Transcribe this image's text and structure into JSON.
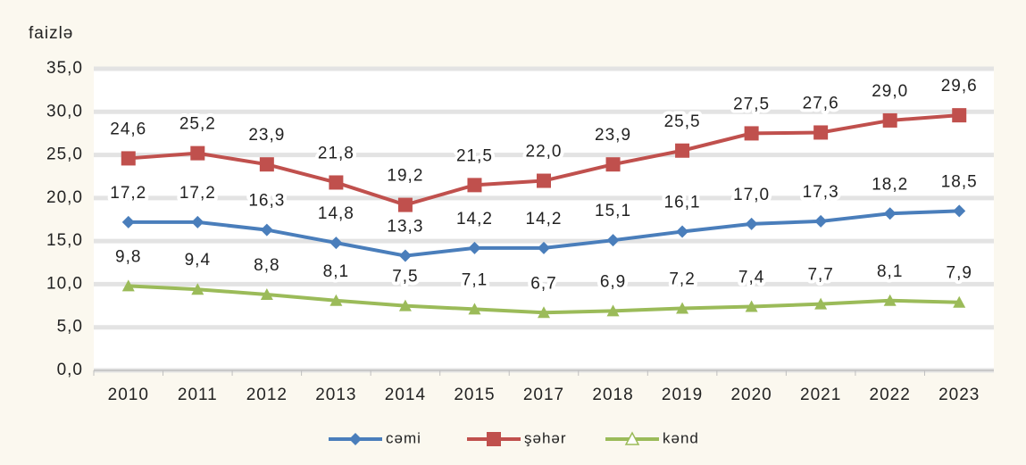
{
  "chart_data": {
    "type": "line",
    "ylabel": "faizlə",
    "categories": [
      "2010",
      "2011",
      "2012",
      "2013",
      "2014",
      "2015",
      "2017",
      "2018",
      "2019",
      "2020",
      "2021",
      "2022",
      "2023"
    ],
    "series": [
      {
        "name": "cəmi",
        "color": "#4a7ebb",
        "marker": "diamond",
        "values": [
          17.2,
          17.2,
          16.3,
          14.8,
          13.3,
          14.2,
          14.2,
          15.1,
          16.1,
          17.0,
          17.3,
          18.2,
          18.5
        ],
        "value_labels": [
          "17,2",
          "17,2",
          "16,3",
          "14,8",
          "13,3",
          "14,2",
          "14,2",
          "15,1",
          "16,1",
          "17,0",
          "17,3",
          "18,2",
          "18,5"
        ]
      },
      {
        "name": "şəhər",
        "color": "#c0504d",
        "marker": "square",
        "values": [
          24.6,
          25.2,
          23.9,
          21.8,
          19.2,
          21.5,
          22.0,
          23.9,
          25.5,
          27.5,
          27.6,
          29.0,
          29.6
        ],
        "value_labels": [
          "24,6",
          "25,2",
          "23,9",
          "21,8",
          "19,2",
          "21,5",
          "22,0",
          "23,9",
          "25,5",
          "27,5",
          "27,6",
          "29,0",
          "29,6"
        ]
      },
      {
        "name": "kənd",
        "color": "#9bbb59",
        "marker": "triangle",
        "values": [
          9.8,
          9.4,
          8.8,
          8.1,
          7.5,
          7.1,
          6.7,
          6.9,
          7.2,
          7.4,
          7.7,
          8.1,
          7.9
        ],
        "value_labels": [
          "9,8",
          "9,4",
          "8,8",
          "8,1",
          "7,5",
          "7,1",
          "6,7",
          "6,9",
          "7,2",
          "7,4",
          "7,7",
          "8,1",
          "7,9"
        ]
      }
    ],
    "ylim": [
      0,
      35
    ],
    "yticks": [
      {
        "value": 0,
        "label": "0,0"
      },
      {
        "value": 5,
        "label": "5,0"
      },
      {
        "value": 10,
        "label": "10,0"
      },
      {
        "value": 15,
        "label": "15,0"
      },
      {
        "value": 20,
        "label": "20,0"
      },
      {
        "value": 25,
        "label": "25,0"
      },
      {
        "value": 30,
        "label": "30,0"
      },
      {
        "value": 35,
        "label": "35,0"
      }
    ],
    "grid": true,
    "legend": "bottom"
  }
}
